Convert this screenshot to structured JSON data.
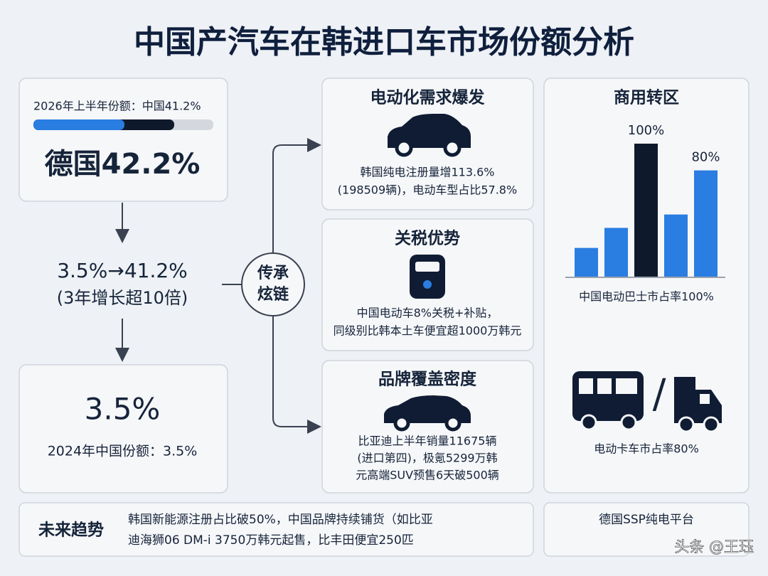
{
  "title": "中国产汽车在韩进口车市场份额分析",
  "share_card": {
    "caption": "2026年上半年份额：中国41.2%",
    "headline": "德国42.2%"
  },
  "growth": {
    "main": "3.5%→41.2%",
    "note": "(3年增长超10倍)"
  },
  "base_card": {
    "headline": "3.5%",
    "caption": "2024年中国份额：3.5%"
  },
  "hub": {
    "lines": [
      "传承",
      "炫链"
    ]
  },
  "cards": [
    {
      "title": "电动化需求爆发",
      "lines": [
        "韩国纯电注册量增113.6%",
        "(198509辆)，电动车型占比57.8%"
      ]
    },
    {
      "title": "关税优势",
      "lines": [
        "中国电动车8%关税+补贴，",
        "同级别比韩本土车便宜超1000万韩元"
      ]
    },
    {
      "title": "品牌覆盖密度",
      "lines": [
        "比亚迪上半年销量11675辆",
        "(进口第四)，极氪5299万韩",
        "元高端SUV预售6天破500辆"
      ]
    }
  ],
  "commercial": {
    "title": "商用转区",
    "chart": {
      "type": "bar",
      "values": [
        22,
        37,
        100,
        47,
        80
      ],
      "value_labels": [
        null,
        null,
        "100%",
        null,
        "80%"
      ],
      "colors": [
        "#2a7de1",
        "#2a7de1",
        "#0e1a2c",
        "#2a7de1",
        "#2a7de1"
      ]
    },
    "bus_caption": "中国电动巴士市占率100%",
    "separator": "/",
    "truck_caption": "电动卡车市占率80%"
  },
  "future": {
    "label": "未来趋势",
    "lines": [
      "韩国新能源注册占比破50%，中国品牌持续铺货（如比亚",
      "迪海狮06 DM-i 3750万韩元起售，比丰田便宜250匹"
    ]
  },
  "side_note": "德国SSP纯电平台",
  "watermark": "头条 @王珏"
}
